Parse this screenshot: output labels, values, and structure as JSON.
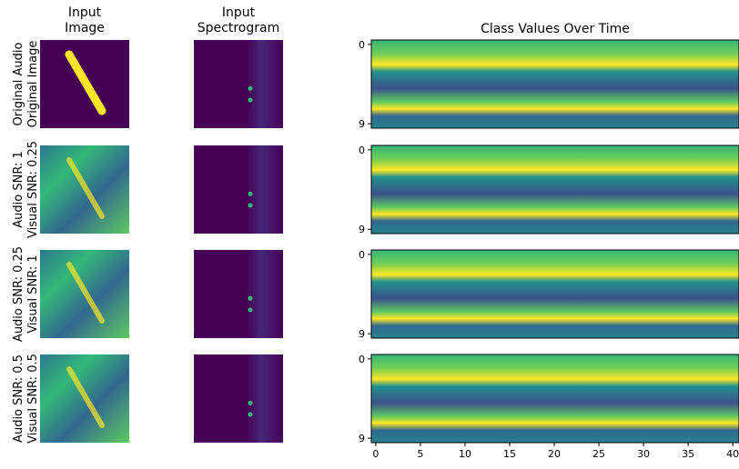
{
  "chart_data": {
    "type": "heatmap-grid",
    "column_titles": [
      [
        "Input",
        "Image"
      ],
      [
        "Input",
        "Spectrogram"
      ]
    ],
    "title": "Class Values Over Time",
    "row_labels": [
      [
        "Original Audio",
        "Original Image"
      ],
      [
        "Audio SNR: 1",
        "Visual SNR: 0.25"
      ],
      [
        "Audio SNR: 0.25",
        "Visual SNR: 1"
      ],
      [
        "Audio SNR: 0.5",
        "Visual SNR: 0.5"
      ]
    ],
    "ylim": [
      -0.5,
      9.5
    ],
    "yticks": [
      0,
      9
    ],
    "xlim": [
      -0.5,
      40.7
    ],
    "xticks": [
      0,
      5,
      10,
      15,
      20,
      25,
      30,
      35,
      40
    ]
  }
}
